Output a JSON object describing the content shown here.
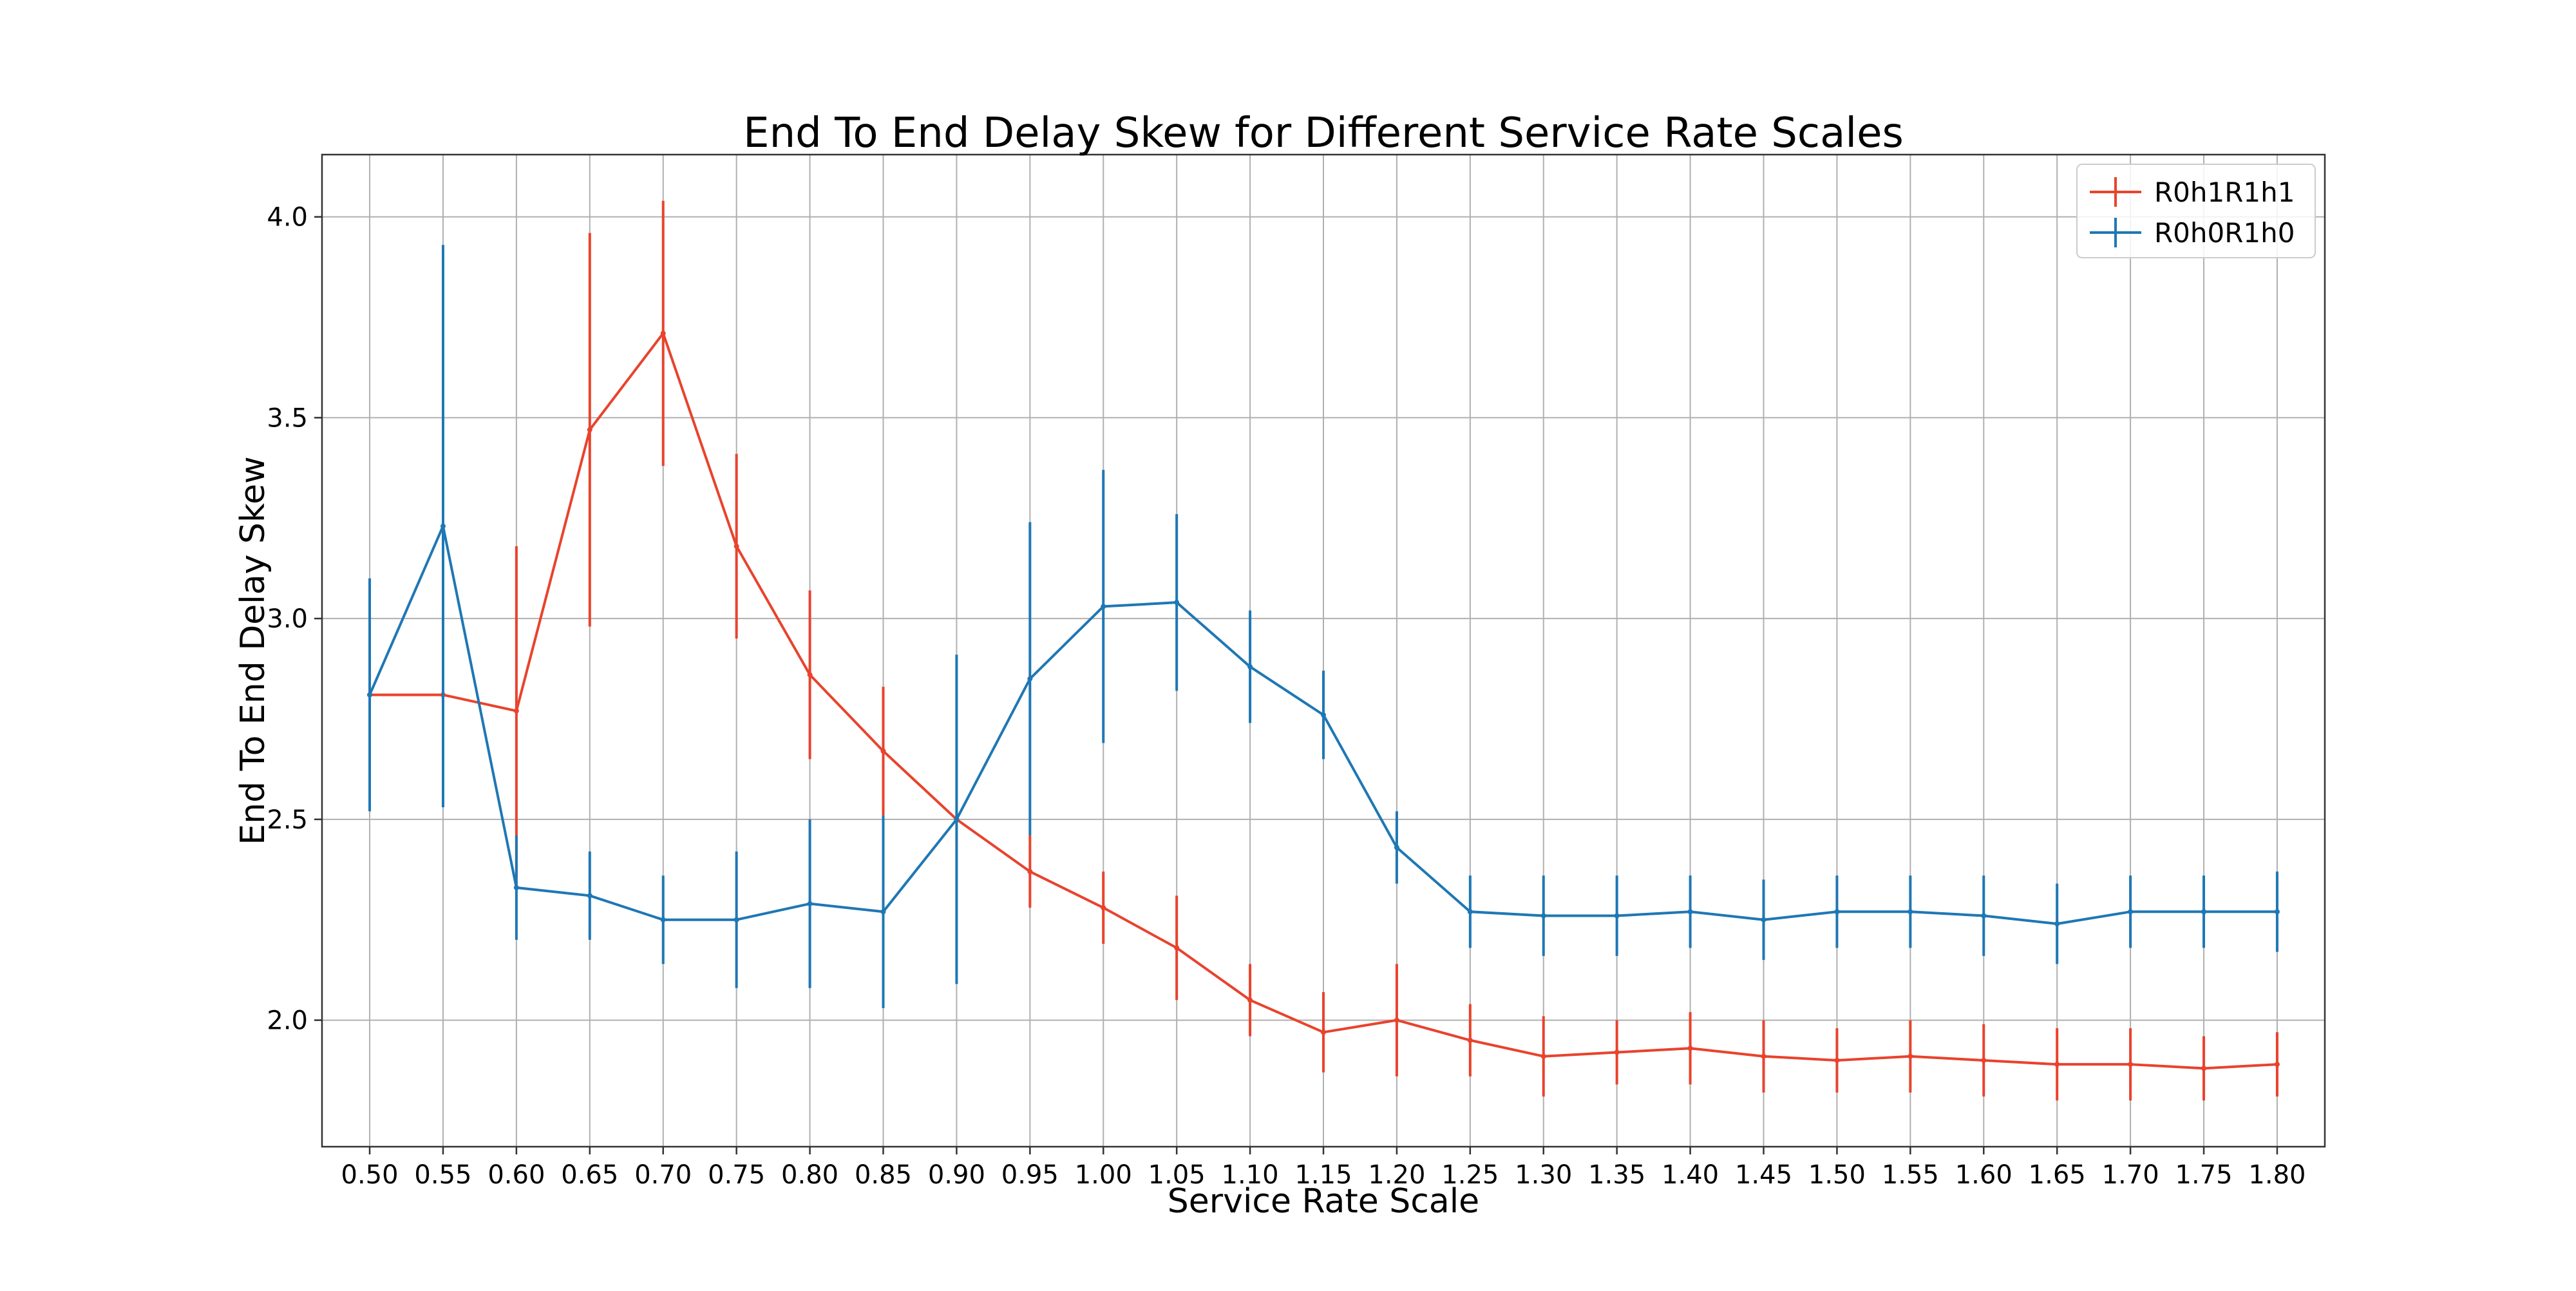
{
  "chart_data": {
    "type": "line",
    "title": "End To End Delay Skew for Different Service Rate Scales",
    "xlabel": "Service Rate Scale",
    "ylabel": "End To End Delay Skew",
    "x": [
      "0.50",
      "0.55",
      "0.60",
      "0.65",
      "0.70",
      "0.75",
      "0.80",
      "0.85",
      "0.90",
      "0.95",
      "1.00",
      "1.05",
      "1.10",
      "1.15",
      "1.20",
      "1.25",
      "1.30",
      "1.35",
      "1.40",
      "1.45",
      "1.50",
      "1.55",
      "1.60",
      "1.65",
      "1.70",
      "1.75",
      "1.80"
    ],
    "xlim": [
      0.4675,
      1.8325
    ],
    "ylim": [
      1.685,
      4.155
    ],
    "yticks": [
      "2.0",
      "2.5",
      "3.0",
      "3.5",
      "4.0"
    ],
    "ytick_values": [
      2.0,
      2.5,
      3.0,
      3.5,
      4.0
    ],
    "grid": true,
    "legend_position": "top-right",
    "series": [
      {
        "name": "R0h1R1h1",
        "color": "#e8432d",
        "values": [
          2.81,
          2.81,
          2.77,
          3.47,
          3.71,
          3.18,
          2.86,
          2.67,
          2.5,
          2.37,
          2.28,
          2.18,
          2.05,
          1.97,
          2.0,
          1.95,
          1.91,
          1.92,
          1.93,
          1.91,
          1.9,
          1.91,
          1.9,
          1.89,
          1.89,
          1.88,
          1.89
        ],
        "error": [
          0.0,
          0.0,
          0.41,
          0.49,
          0.33,
          0.23,
          0.21,
          0.16,
          0.0,
          0.09,
          0.09,
          0.13,
          0.09,
          0.1,
          0.14,
          0.09,
          0.1,
          0.08,
          0.09,
          0.09,
          0.08,
          0.09,
          0.09,
          0.09,
          0.09,
          0.08,
          0.08
        ]
      },
      {
        "name": "R0h0R1h0",
        "color": "#1f77b4",
        "values": [
          2.81,
          3.23,
          2.33,
          2.31,
          2.25,
          2.25,
          2.29,
          2.27,
          2.5,
          2.85,
          3.03,
          3.04,
          2.88,
          2.76,
          2.43,
          2.27,
          2.26,
          2.26,
          2.27,
          2.25,
          2.27,
          2.27,
          2.26,
          2.24,
          2.27,
          2.27,
          2.27
        ],
        "error": [
          0.29,
          0.7,
          0.13,
          0.11,
          0.11,
          0.17,
          0.21,
          0.24,
          0.41,
          0.39,
          0.34,
          0.22,
          0.14,
          0.11,
          0.09,
          0.09,
          0.1,
          0.1,
          0.09,
          0.1,
          0.09,
          0.09,
          0.1,
          0.1,
          0.09,
          0.09,
          0.1
        ]
      }
    ]
  }
}
